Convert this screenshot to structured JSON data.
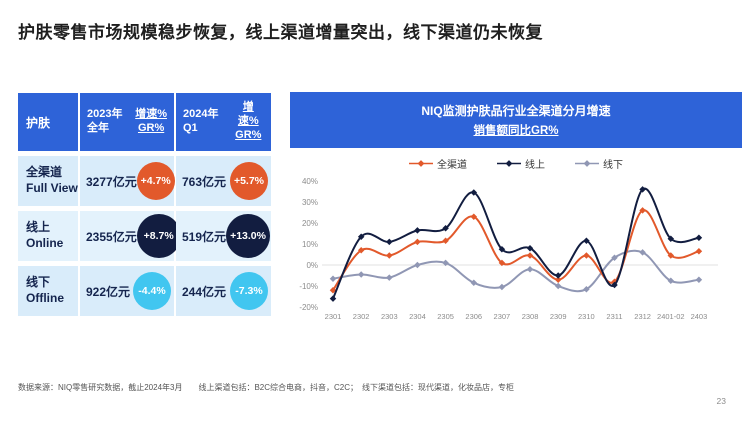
{
  "page": {
    "title": "护肤零售市场规模稳步恢复，线上渠道增量突出，线下渠道仍未恢复",
    "footnote": "数据来源：NIQ零售研究数据，截止2024年3月　　线上渠道包括：B2C综合电商，抖音，C2C；　线下渠道包括：现代渠道，化妆品店，专柜",
    "page_number": "23"
  },
  "theme": {
    "primary_blue": "#2E63D8",
    "row_bg": "#D9ECFA",
    "row_bg_alt": "#E3F2FC",
    "table_text_navy": "#15254E",
    "orange": "#E2592B",
    "navy": "#121D40",
    "cyan": "#41C6F0",
    "axis_gray": "#8C8C8C",
    "zero_line_gray": "#E2E2E2"
  },
  "table": {
    "corner_label": "护肤",
    "col_2023_line1": "2023年",
    "col_2023_line2": "全年",
    "col_q1": "2024年Q1",
    "gr_line1": "增速%",
    "gr_line2": "GR%",
    "rows": [
      {
        "label_cn": "全渠道",
        "label_en": "Full View",
        "value_2023": "3277亿元",
        "gr_2023": "+4.7%",
        "value_q1": "763亿元",
        "gr_q1": "+5.7%",
        "bubble_color": "#E2592B"
      },
      {
        "label_cn": "线上",
        "label_en": "Online",
        "value_2023": "2355亿元",
        "gr_2023": "+8.7%",
        "value_q1": "519亿元",
        "gr_q1": "+13.0%",
        "bubble_color": "#121D40"
      },
      {
        "label_cn": "线下",
        "label_en": "Offline",
        "value_2023": "922亿元",
        "gr_2023": "-4.4%",
        "value_q1": "244亿元",
        "gr_q1": "-7.3%",
        "bubble_color": "#41C6F0"
      }
    ]
  },
  "chart": {
    "banner_line1": "NIQ监测护肤品行业全渠道分月增速",
    "banner_line2": "销售额同比GR%"
  },
  "chart_data": {
    "type": "line",
    "title": "NIQ监测护肤品行业全渠道分月增速 销售额同比GR%",
    "categories": [
      "2301",
      "2302",
      "2303",
      "2304",
      "2305",
      "2306",
      "2307",
      "2308",
      "2309",
      "2310",
      "2311",
      "2312",
      "2401-02",
      "2403"
    ],
    "series": [
      {
        "name": "全渠道",
        "color": "#E2592B",
        "values": [
          -12,
          7,
          4.5,
          11,
          11.5,
          23,
          1,
          4.5,
          -7,
          4.5,
          -8,
          26,
          4.5,
          6.5
        ]
      },
      {
        "name": "线上",
        "color": "#121D40",
        "values": [
          -16,
          13.5,
          11,
          16.5,
          17.5,
          34.5,
          7.5,
          8,
          -5,
          11.5,
          -9.5,
          36,
          12.5,
          13
        ]
      },
      {
        "name": "线下",
        "color": "#9097B4",
        "values": [
          -6.5,
          -4.5,
          -6,
          0,
          1,
          -8.5,
          -10.5,
          -2,
          -10,
          -11.5,
          3.5,
          6,
          -7.5,
          -7
        ]
      }
    ],
    "ylim": [
      -20,
      40
    ],
    "yticks": [
      40,
      30,
      20,
      10,
      0,
      -10,
      -20
    ],
    "ytick_suffix": "%",
    "grid": "zero-line-only",
    "legend_position": "top",
    "marker": "diamond",
    "xlabel": "",
    "ylabel": ""
  }
}
